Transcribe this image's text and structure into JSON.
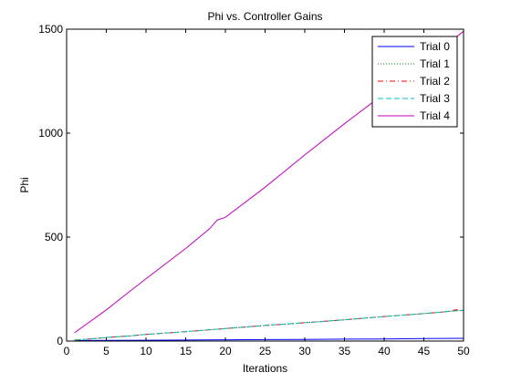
{
  "chart_data": {
    "type": "line",
    "title": "Phi vs. Controller Gains",
    "xlabel": "Iterations",
    "ylabel": "Phi",
    "xlim": [
      0,
      50
    ],
    "ylim": [
      0,
      1500
    ],
    "xticks": [
      "0",
      "5",
      "10",
      "15",
      "20",
      "25",
      "30",
      "35",
      "40",
      "45",
      "50"
    ],
    "yticks": [
      "0",
      "500",
      "1000",
      "1500"
    ],
    "grid": false,
    "legend_position": "top-right",
    "series": [
      {
        "name": "Trial 0",
        "color": "#0000ff",
        "dash": "solid",
        "x": [
          1,
          5,
          10,
          15,
          20,
          25,
          30,
          35,
          40,
          45,
          50
        ],
        "y": [
          2,
          3,
          4,
          5,
          6,
          7,
          8,
          9,
          10,
          12,
          13
        ]
      },
      {
        "name": "Trial 1",
        "color": "#008000",
        "dash": "dotted",
        "x": [
          1,
          3,
          5,
          8,
          10,
          15,
          20,
          25,
          30,
          35,
          40,
          45,
          48,
          49,
          50
        ],
        "y": [
          5,
          10,
          17,
          25,
          32,
          45,
          60,
          75,
          88,
          102,
          118,
          132,
          142,
          145,
          148
        ]
      },
      {
        "name": "Trial 2",
        "color": "#ff0000",
        "dash": "dashdot",
        "x": [
          1,
          3,
          5,
          8,
          10,
          15,
          20,
          25,
          30,
          35,
          40,
          45,
          48,
          49,
          50
        ],
        "y": [
          5,
          10,
          17,
          25,
          32,
          45,
          60,
          75,
          88,
          102,
          118,
          132,
          142,
          150,
          146
        ]
      },
      {
        "name": "Trial 3",
        "color": "#00bfbf",
        "dash": "dashed",
        "x": [
          1,
          3,
          5,
          8,
          10,
          15,
          20,
          25,
          30,
          35,
          40,
          45,
          48,
          49,
          50
        ],
        "y": [
          5,
          10,
          17,
          25,
          32,
          45,
          60,
          75,
          88,
          102,
          118,
          132,
          142,
          145,
          148
        ]
      },
      {
        "name": "Trial 4",
        "color": "#bf00bf",
        "dash": "solid",
        "x": [
          1,
          5,
          10,
          15,
          18,
          19,
          20,
          25,
          30,
          35,
          40,
          45,
          50
        ],
        "y": [
          40,
          150,
          300,
          445,
          540,
          583,
          595,
          740,
          895,
          1045,
          1190,
          1340,
          1490
        ]
      }
    ]
  }
}
